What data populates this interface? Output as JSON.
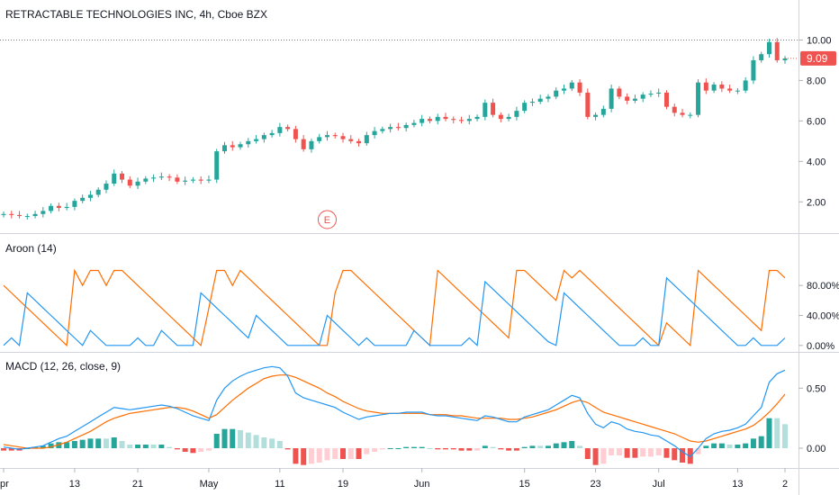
{
  "colors": {
    "up": "#26a69a",
    "down": "#ef5350",
    "macd_line": "#2196f3",
    "signal_line": "#ff6d00",
    "aroon_up": "#ff6d00",
    "aroon_down": "#2196f3",
    "hist_up_strong": "#26a69a",
    "hist_up_weak": "#b2dfdb",
    "hist_down_strong": "#ef5350",
    "hist_down_weak": "#ffcdd2",
    "text": "#131722",
    "axis_text": "#131722",
    "divider": "#d1d4dc"
  },
  "chart_data": [
    {
      "type": "candlestick",
      "title": "RETRACTABLE TECHNOLOGIES INC, 4h, Cboe BZX",
      "y_ticks": [
        "2.00",
        "4.00",
        "6.00",
        "8.00",
        "10.00"
      ],
      "ylim": [
        0.5,
        11
      ],
      "last_price": "9.09",
      "last_price_value": 9.09,
      "previous_level": 10,
      "earnings_marker": "E",
      "earnings_index": 41,
      "x_ticks": [
        {
          "label": "pr",
          "index": 0
        },
        {
          "label": "13",
          "index": 9
        },
        {
          "label": "21",
          "index": 17
        },
        {
          "label": "May",
          "index": 26
        },
        {
          "label": "11",
          "index": 35
        },
        {
          "label": "19",
          "index": 43
        },
        {
          "label": "Jun",
          "index": 53
        },
        {
          "label": "15",
          "index": 66
        },
        {
          "label": "23",
          "index": 75
        },
        {
          "label": "Jul",
          "index": 83
        },
        {
          "label": "13",
          "index": 93
        },
        {
          "label": "2",
          "index": 99
        }
      ],
      "close": [
        1.4,
        1.35,
        1.3,
        1.3,
        1.4,
        1.55,
        1.8,
        1.7,
        1.75,
        2.05,
        2.2,
        2.35,
        2.6,
        2.9,
        3.4,
        3.1,
        2.8,
        3.0,
        3.15,
        3.2,
        3.25,
        3.2,
        3.0,
        3.05,
        3.1,
        3.05,
        3.1,
        4.5,
        4.8,
        4.7,
        4.85,
        5.0,
        5.1,
        5.3,
        5.4,
        5.7,
        5.6,
        5.1,
        4.6,
        5.0,
        5.2,
        5.3,
        5.25,
        5.1,
        5.0,
        4.9,
        5.3,
        5.5,
        5.6,
        5.7,
        5.65,
        5.8,
        5.9,
        6.1,
        6.0,
        6.2,
        6.1,
        6.05,
        6.0,
        6.1,
        6.2,
        6.9,
        6.3,
        6.1,
        6.2,
        6.5,
        6.9,
        6.95,
        7.1,
        7.2,
        7.5,
        7.6,
        7.9,
        7.4,
        6.2,
        6.3,
        6.6,
        7.6,
        7.2,
        7.0,
        7.1,
        7.3,
        7.35,
        7.4,
        6.7,
        6.4,
        6.3,
        6.3,
        7.9,
        7.5,
        7.8,
        7.6,
        7.5,
        7.5,
        8.0,
        9.0,
        9.3,
        9.9,
        9.0,
        9.09
      ],
      "macd": [
        0.01,
        0.0,
        -0.01,
        0.0,
        0.01,
        0.02,
        0.05,
        0.08,
        0.1,
        0.14,
        0.18,
        0.22,
        0.26,
        0.3,
        0.34,
        0.33,
        0.32,
        0.33,
        0.34,
        0.35,
        0.36,
        0.35,
        0.33,
        0.3,
        0.27,
        0.25,
        0.23,
        0.4,
        0.5,
        0.56,
        0.6,
        0.63,
        0.65,
        0.67,
        0.68,
        0.67,
        0.6,
        0.46,
        0.42,
        0.4,
        0.38,
        0.36,
        0.34,
        0.3,
        0.27,
        0.24,
        0.26,
        0.27,
        0.28,
        0.29,
        0.29,
        0.3,
        0.3,
        0.3,
        0.28,
        0.27,
        0.27,
        0.26,
        0.25,
        0.24,
        0.23,
        0.27,
        0.26,
        0.24,
        0.22,
        0.22,
        0.26,
        0.28,
        0.3,
        0.32,
        0.36,
        0.4,
        0.44,
        0.42,
        0.29,
        0.2,
        0.17,
        0.22,
        0.2,
        0.16,
        0.14,
        0.13,
        0.11,
        0.1,
        0.06,
        0.02,
        -0.03,
        -0.07,
        0.0,
        0.08,
        0.12,
        0.14,
        0.15,
        0.17,
        0.2,
        0.27,
        0.34,
        0.55,
        0.62,
        0.65
      ],
      "signal": [
        0.03,
        0.02,
        0.01,
        0.0,
        0.0,
        0.0,
        0.01,
        0.03,
        0.05,
        0.08,
        0.11,
        0.14,
        0.18,
        0.22,
        0.25,
        0.27,
        0.29,
        0.3,
        0.31,
        0.32,
        0.33,
        0.34,
        0.34,
        0.33,
        0.31,
        0.28,
        0.25,
        0.28,
        0.34,
        0.4,
        0.45,
        0.5,
        0.54,
        0.58,
        0.6,
        0.61,
        0.61,
        0.59,
        0.56,
        0.53,
        0.5,
        0.46,
        0.43,
        0.39,
        0.36,
        0.33,
        0.31,
        0.3,
        0.29,
        0.29,
        0.29,
        0.29,
        0.29,
        0.29,
        0.28,
        0.28,
        0.28,
        0.27,
        0.27,
        0.26,
        0.25,
        0.25,
        0.25,
        0.25,
        0.24,
        0.24,
        0.25,
        0.26,
        0.28,
        0.3,
        0.32,
        0.35,
        0.38,
        0.4,
        0.38,
        0.34,
        0.3,
        0.28,
        0.26,
        0.24,
        0.22,
        0.2,
        0.18,
        0.16,
        0.14,
        0.12,
        0.09,
        0.06,
        0.05,
        0.06,
        0.08,
        0.1,
        0.12,
        0.14,
        0.16,
        0.19,
        0.24,
        0.3,
        0.37,
        0.45
      ]
    },
    {
      "type": "line",
      "title": "Aroon (14)",
      "y_ticks": [
        "0.00%",
        "40.00%",
        "80.00%"
      ],
      "ylim": [
        -5,
        115
      ],
      "series": [
        {
          "values": [
            80,
            70,
            60,
            50,
            40,
            30,
            20,
            10,
            0,
            100,
            80,
            100,
            100,
            80,
            100,
            100,
            90,
            80,
            70,
            60,
            50,
            40,
            30,
            20,
            10,
            0,
            50,
            100,
            100,
            80,
            100,
            90,
            80,
            70,
            60,
            50,
            40,
            30,
            20,
            10,
            0,
            0,
            70,
            100,
            100,
            90,
            80,
            70,
            60,
            50,
            40,
            30,
            20,
            10,
            0,
            100,
            90,
            80,
            70,
            60,
            50,
            40,
            30,
            20,
            10,
            100,
            100,
            90,
            80,
            70,
            60,
            100,
            90,
            100,
            90,
            80,
            70,
            60,
            50,
            40,
            30,
            20,
            10,
            0,
            30,
            20,
            10,
            0,
            100,
            90,
            80,
            70,
            60,
            50,
            40,
            30,
            20,
            100,
            100,
            90
          ]
        },
        {
          "values": [
            0,
            10,
            0,
            70,
            60,
            50,
            40,
            30,
            20,
            10,
            0,
            20,
            10,
            0,
            0,
            0,
            0,
            10,
            0,
            0,
            20,
            10,
            0,
            0,
            0,
            70,
            60,
            50,
            40,
            30,
            20,
            10,
            40,
            30,
            20,
            10,
            0,
            0,
            0,
            0,
            0,
            40,
            30,
            20,
            10,
            0,
            10,
            0,
            0,
            0,
            0,
            0,
            20,
            10,
            0,
            0,
            0,
            0,
            0,
            10,
            0,
            85,
            75,
            65,
            55,
            45,
            35,
            25,
            15,
            5,
            0,
            70,
            60,
            50,
            40,
            30,
            20,
            10,
            0,
            0,
            0,
            10,
            0,
            0,
            90,
            80,
            70,
            60,
            50,
            40,
            30,
            20,
            10,
            0,
            0,
            10,
            0,
            0,
            0,
            10
          ]
        }
      ]
    },
    {
      "type": "line",
      "title": "MACD (12, 26, close, 9)",
      "y_ticks": [
        "0.00",
        "0.50"
      ],
      "ylim": [
        -0.15,
        0.75
      ]
    }
  ]
}
